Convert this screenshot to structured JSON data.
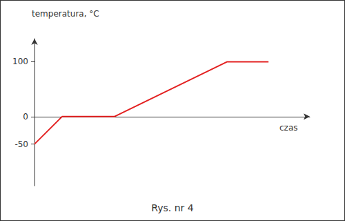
{
  "chart_data": {
    "type": "line",
    "title": "Rys. nr 4",
    "x_label": "czas",
    "y_label": "temperatura, °C",
    "x": [
      0,
      10,
      29,
      70,
      85
    ],
    "values": [
      -50,
      0,
      0,
      100,
      100
    ],
    "color": "#e32020",
    "xlim": [
      0,
      100
    ],
    "ylim": [
      -126,
      142
    ],
    "yticks": [
      -50,
      0,
      100
    ],
    "grid": false,
    "tick_labels": "y"
  }
}
